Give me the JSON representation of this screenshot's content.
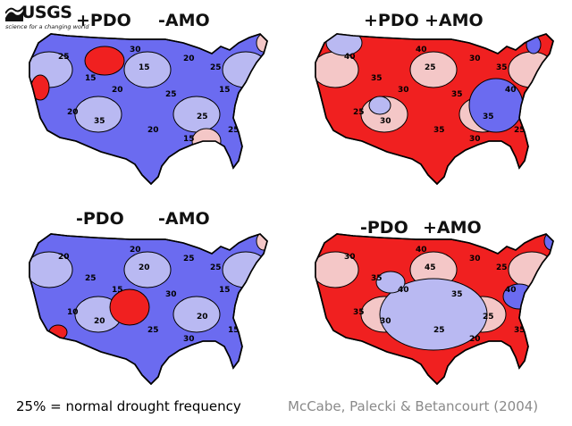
{
  "logo": {
    "name": "USGS",
    "tagline": "science for a changing world"
  },
  "panels": [
    {
      "pdo": "+PDO",
      "amo": "-AMO",
      "label": "+PDO    -AMO",
      "dominant": "#6b6bf0",
      "secondary": "#b9b9f2",
      "hot": "#f02020",
      "warm": "#f4c7c7",
      "contours": [
        "25",
        "15",
        "20",
        "15",
        "25",
        "20",
        "25",
        "15",
        "20",
        "35",
        "20",
        "15",
        "25",
        "30",
        "25"
      ]
    },
    {
      "pdo": "+PDO",
      "amo": "+AMO",
      "label": "+PDO    +AMO",
      "dominant": "#f02020",
      "secondary": "#f4c7c7",
      "hot": "#f02020",
      "warm": "#f4c7c7",
      "contours": [
        "40",
        "35",
        "30",
        "25",
        "35",
        "30",
        "35",
        "40",
        "25",
        "30",
        "35",
        "30",
        "25",
        "40",
        "35"
      ]
    },
    {
      "pdo": "-PDO",
      "amo": "-AMO",
      "label": "-PDO    -AMO",
      "dominant": "#6b6bf0",
      "secondary": "#b9b9f2",
      "hot": "#f02020",
      "warm": "#f4c7c7",
      "contours": [
        "20",
        "25",
        "15",
        "20",
        "30",
        "25",
        "20",
        "15",
        "10",
        "20",
        "25",
        "30",
        "15",
        "20",
        "25"
      ]
    },
    {
      "pdo": "-PDO",
      "amo": "+AMO",
      "label": "-PDO  +AMO",
      "dominant": "#f02020",
      "secondary": "#f4c7c7",
      "hot": "#f02020",
      "warm": "#f4c7c7",
      "contours": [
        "30",
        "35",
        "40",
        "45",
        "35",
        "30",
        "25",
        "40",
        "35",
        "30",
        "25",
        "20",
        "35",
        "40",
        "25"
      ]
    }
  ],
  "footer": {
    "note": "25% = normal drought frequency",
    "citation": "McCabe, Palecki & Betancourt (2004)"
  },
  "colors": {
    "blue_strong": "#6b6bf0",
    "blue_light": "#b9b9f2",
    "red_strong": "#f02020",
    "red_light": "#f4c7c7"
  }
}
